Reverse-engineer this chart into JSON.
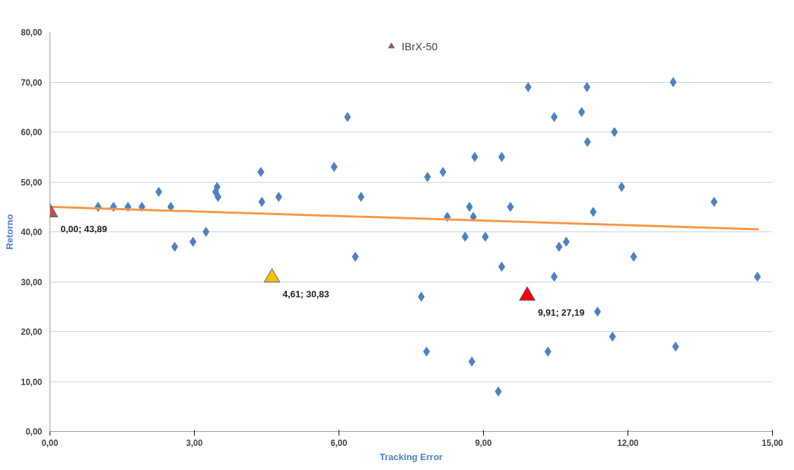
{
  "chart_data": {
    "type": "scatter",
    "xlabel": "Tracking Error",
    "ylabel": "Retorno",
    "xlim": [
      0,
      15
    ],
    "ylim": [
      0,
      80
    ],
    "xticks": [
      {
        "value": 0,
        "label": "0,00"
      },
      {
        "value": 3,
        "label": "3,00"
      },
      {
        "value": 6,
        "label": "6,00"
      },
      {
        "value": 9,
        "label": "9,00"
      },
      {
        "value": 12,
        "label": "12,00"
      },
      {
        "value": 15,
        "label": "15,00"
      }
    ],
    "yticks": [
      {
        "value": 0,
        "label": "0,00"
      },
      {
        "value": 10,
        "label": "10,00"
      },
      {
        "value": 20,
        "label": "20,00"
      },
      {
        "value": 30,
        "label": "30,00"
      },
      {
        "value": 40,
        "label": "40,00"
      },
      {
        "value": 50,
        "label": "50,00"
      },
      {
        "value": 60,
        "label": "60,00"
      },
      {
        "value": 70,
        "label": "70,00"
      },
      {
        "value": 80,
        "label": "80,00"
      }
    ],
    "grid": "y",
    "legend": "top",
    "series": [
      {
        "marker": "diamond",
        "color": "#4f81bd",
        "x": [
          1.0,
          1.32,
          1.62,
          1.91,
          2.26,
          2.51,
          2.59,
          2.97,
          3.24,
          3.44,
          3.47,
          3.49,
          4.38,
          4.4,
          4.75,
          5.9,
          6.18,
          6.34,
          6.46,
          7.71,
          7.82,
          7.84,
          8.16,
          8.25,
          8.62,
          8.71,
          8.76,
          8.79,
          8.82,
          9.04,
          9.31,
          9.38,
          9.38,
          9.56,
          9.93,
          10.34,
          10.47,
          10.47,
          10.57,
          10.72,
          11.04,
          11.15,
          11.16,
          11.28,
          11.37,
          11.68,
          11.72,
          11.87,
          12.12,
          12.94,
          12.99,
          13.79,
          14.69
        ],
        "values": [
          45,
          45,
          45,
          45,
          48,
          45,
          37,
          38,
          40,
          48,
          49,
          47,
          52,
          46,
          47,
          53,
          63,
          35,
          47,
          27,
          16,
          51,
          52,
          43,
          39,
          45,
          14,
          43,
          55,
          39,
          8,
          33,
          55,
          45,
          69,
          16,
          31,
          63,
          37,
          38,
          64,
          69,
          58,
          44,
          24,
          19,
          60,
          49,
          35,
          70,
          17,
          46,
          31
        ]
      },
      {
        "type": "line",
        "marker": "none",
        "color": "#f79646",
        "x": [
          0,
          14.72
        ],
        "values": [
          45,
          40.5
        ]
      },
      {
        "marker": "triangle",
        "color": "#ff0000",
        "x": [
          9.91
        ],
        "values": [
          27.19
        ]
      },
      {
        "marker": "triangle",
        "color": "#ffc000",
        "x": [
          4.61
        ],
        "values": [
          30.83
        ]
      },
      {
        "name": "IBrX-50",
        "marker": "triangle",
        "color": "#c0504d",
        "x": [
          0.0
        ],
        "values": [
          43.89
        ]
      }
    ],
    "annotations": [
      {
        "text": "0,00; 43,89",
        "x": 0.0,
        "y": 43.89
      },
      {
        "text": "4,61; 30,83",
        "x": 4.61,
        "y": 30.83
      },
      {
        "text": "9,91; 27,19",
        "x": 9.91,
        "y": 27.19
      }
    ]
  }
}
